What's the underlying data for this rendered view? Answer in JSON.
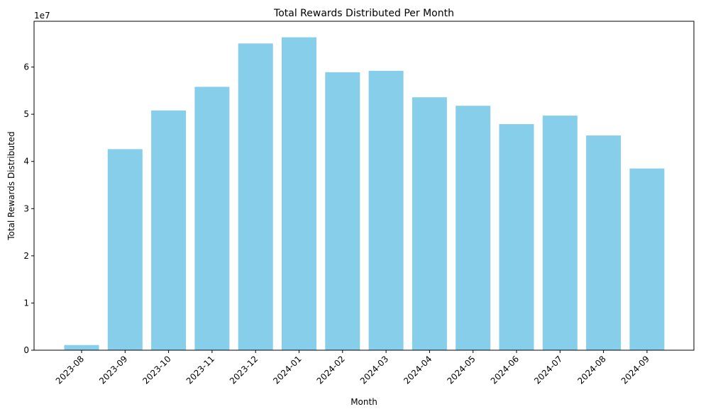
{
  "chart_data": {
    "type": "bar",
    "title": "Total Rewards Distributed Per Month",
    "xlabel": "Month",
    "ylabel": "Total Rewards Distributed",
    "y_offset_label": "1e7",
    "categories": [
      "2023-08",
      "2023-09",
      "2023-10",
      "2023-11",
      "2023-12",
      "2024-01",
      "2024-02",
      "2024-03",
      "2024-04",
      "2024-05",
      "2024-06",
      "2024-07",
      "2024-08",
      "2024-09"
    ],
    "values": [
      1100000,
      42600000,
      50800000,
      55800000,
      65000000,
      66300000,
      58900000,
      59200000,
      53600000,
      51800000,
      47900000,
      49700000,
      45500000,
      38500000
    ],
    "y_ticks": [
      0,
      10000000,
      20000000,
      30000000,
      40000000,
      50000000,
      60000000
    ],
    "y_tick_labels": [
      "0",
      "1",
      "2",
      "3",
      "4",
      "5",
      "6"
    ],
    "ylim": [
      0,
      69700000
    ],
    "bar_color": "#87ceeb",
    "grid": false,
    "legend": "none"
  }
}
